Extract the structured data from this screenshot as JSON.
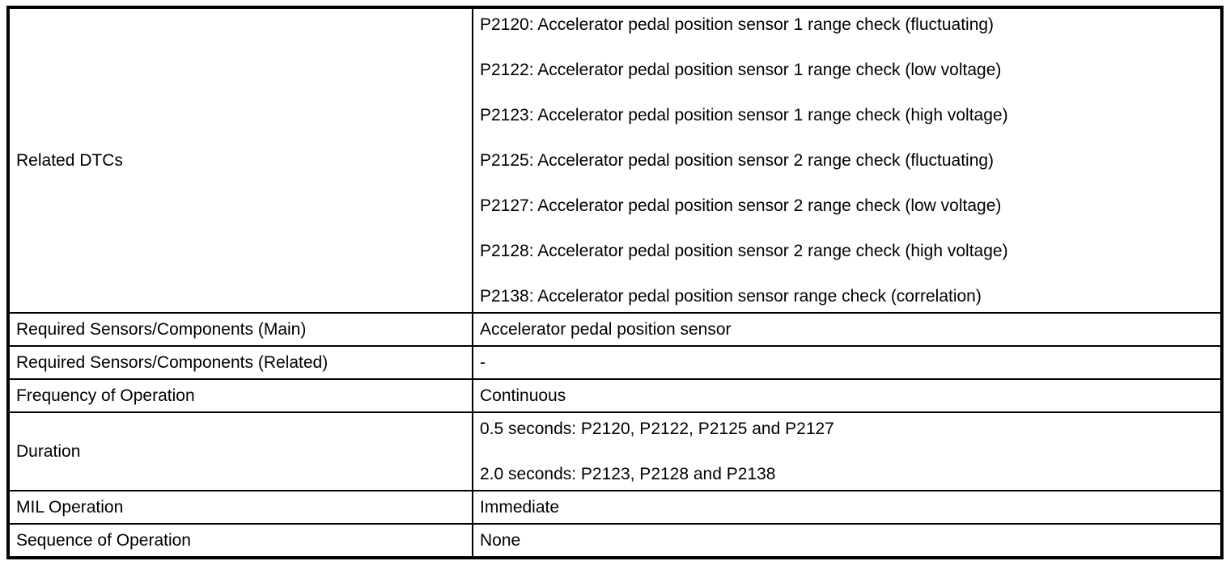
{
  "table": {
    "rows": [
      {
        "label": "Related DTCs",
        "values": [
          "P2120: Accelerator pedal position sensor 1 range check (fluctuating)",
          "P2122: Accelerator pedal position sensor 1 range check (low voltage)",
          "P2123: Accelerator pedal position sensor 1 range check (high voltage)",
          "P2125: Accelerator pedal position sensor 2 range check (fluctuating)",
          "P2127: Accelerator pedal position sensor 2 range check (low voltage)",
          "P2128: Accelerator pedal position sensor 2 range check (high voltage)",
          "P2138: Accelerator pedal position sensor range check (correlation)"
        ]
      },
      {
        "label": "Required Sensors/Components (Main)",
        "values": [
          "Accelerator pedal position sensor"
        ]
      },
      {
        "label": "Required Sensors/Components (Related)",
        "values": [
          "-"
        ]
      },
      {
        "label": "Frequency of Operation",
        "values": [
          "Continuous"
        ]
      },
      {
        "label": "Duration",
        "values": [
          "0.5 seconds: P2120, P2122, P2125 and P2127",
          "2.0 seconds: P2123, P2128 and P2138"
        ]
      },
      {
        "label": "MIL Operation",
        "values": [
          "Immediate"
        ]
      },
      {
        "label": "Sequence of Operation",
        "values": [
          "None"
        ]
      }
    ]
  }
}
